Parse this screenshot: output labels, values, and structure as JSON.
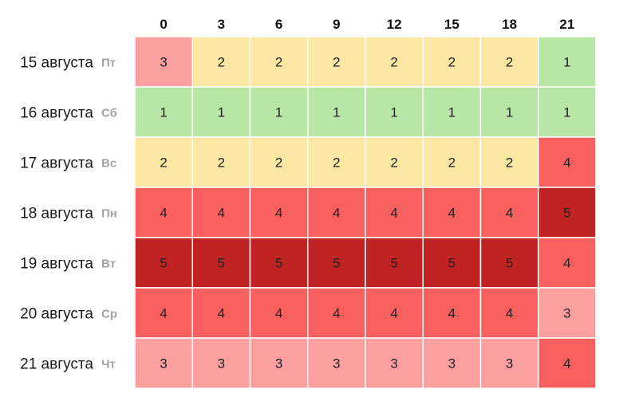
{
  "chart_data": {
    "type": "heatmap",
    "hours": [
      "0",
      "3",
      "6",
      "9",
      "12",
      "15",
      "18",
      "21"
    ],
    "rows": [
      {
        "date": "15 августа",
        "weekday": "Пт",
        "values": [
          3,
          2,
          2,
          2,
          2,
          2,
          2,
          1
        ]
      },
      {
        "date": "16 августа",
        "weekday": "Сб",
        "values": [
          1,
          1,
          1,
          1,
          1,
          1,
          1,
          1
        ]
      },
      {
        "date": "17 августа",
        "weekday": "Вс",
        "values": [
          2,
          2,
          2,
          2,
          2,
          2,
          2,
          4
        ]
      },
      {
        "date": "18 августа",
        "weekday": "Пн",
        "values": [
          4,
          4,
          4,
          4,
          4,
          4,
          4,
          5
        ]
      },
      {
        "date": "19 августа",
        "weekday": "Вт",
        "values": [
          5,
          5,
          5,
          5,
          5,
          5,
          5,
          4
        ]
      },
      {
        "date": "20 августа",
        "weekday": "Ср",
        "values": [
          4,
          4,
          4,
          4,
          4,
          4,
          4,
          3
        ]
      },
      {
        "date": "21 августа",
        "weekday": "Чт",
        "values": [
          3,
          3,
          3,
          3,
          3,
          3,
          3,
          4
        ]
      }
    ],
    "color_scale": {
      "1": "#b8e6a6",
      "2": "#fbe6a4",
      "3": "#fb9f9f",
      "4": "#f85f5f",
      "5": "#bf2323"
    }
  }
}
